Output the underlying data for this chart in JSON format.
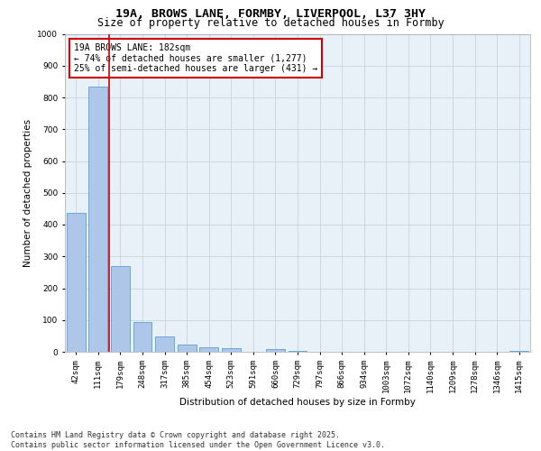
{
  "title_line1": "19A, BROWS LANE, FORMBY, LIVERPOOL, L37 3HY",
  "title_line2": "Size of property relative to detached houses in Formby",
  "xlabel": "Distribution of detached houses by size in Formby",
  "ylabel": "Number of detached properties",
  "categories": [
    "42sqm",
    "111sqm",
    "179sqm",
    "248sqm",
    "317sqm",
    "385sqm",
    "454sqm",
    "523sqm",
    "591sqm",
    "660sqm",
    "729sqm",
    "797sqm",
    "866sqm",
    "934sqm",
    "1003sqm",
    "1072sqm",
    "1140sqm",
    "1209sqm",
    "1278sqm",
    "1346sqm",
    "1415sqm"
  ],
  "values": [
    437,
    835,
    270,
    95,
    48,
    22,
    14,
    10,
    0,
    8,
    3,
    1,
    0,
    0,
    0,
    0,
    0,
    0,
    0,
    0,
    2
  ],
  "bar_color": "#aec6e8",
  "bar_edge_color": "#5a9fd4",
  "vline_x": 1.5,
  "vline_color": "#cc0000",
  "ylim": [
    0,
    1000
  ],
  "yticks": [
    0,
    100,
    200,
    300,
    400,
    500,
    600,
    700,
    800,
    900,
    1000
  ],
  "annotation_box_text": "19A BROWS LANE: 182sqm\n← 74% of detached houses are smaller (1,277)\n25% of semi-detached houses are larger (431) →",
  "grid_color": "#c8d4e0",
  "background_color": "#e8f0f8",
  "footer": "Contains HM Land Registry data © Crown copyright and database right 2025.\nContains public sector information licensed under the Open Government Licence v3.0.",
  "title_fontsize": 9.5,
  "subtitle_fontsize": 8.5,
  "axis_label_fontsize": 7.5,
  "tick_fontsize": 6.5,
  "annotation_fontsize": 7,
  "footer_fontsize": 6
}
